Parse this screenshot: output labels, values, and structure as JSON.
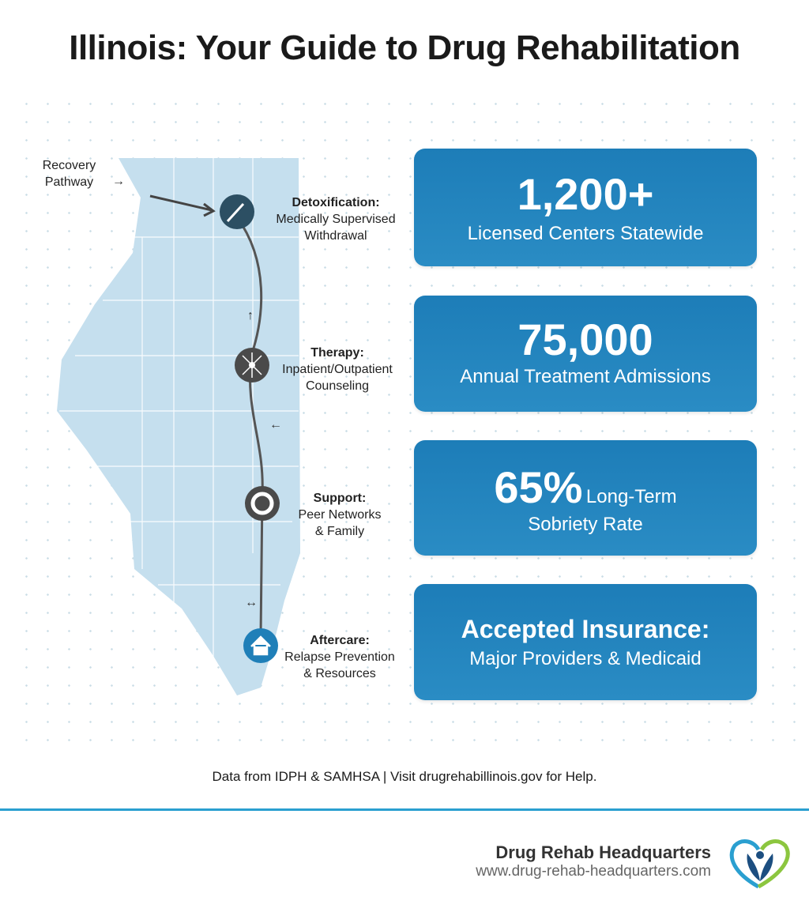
{
  "title": "Illinois: Your Guide to Drug Rehabilitation",
  "map": {
    "pathway_label": [
      "Recovery",
      "Pathway"
    ],
    "steps": [
      {
        "title": "Detoxification:",
        "lines": [
          "Medically Supervised",
          "Withdrawal"
        ],
        "icon": "syringe-stethoscope-icon"
      },
      {
        "title": "Therapy:",
        "lines": [
          "Inpatient/Outpatient",
          "Counseling"
        ],
        "icon": "neuron-icon"
      },
      {
        "title": "Support:",
        "lines": [
          "Peer Networks",
          "& Family"
        ],
        "icon": "lifebuoy-icon"
      },
      {
        "title": "Aftercare:",
        "lines": [
          "Relapse Prevention",
          "& Resources"
        ],
        "icon": "house-icon"
      }
    ]
  },
  "stats": [
    {
      "value": "1,200+",
      "label": "Licensed Centers Statewide"
    },
    {
      "value": "75,000",
      "label": "Annual Treatment Admissions"
    },
    {
      "value": "65%",
      "label_inline": "Long-Term",
      "label": "Sobriety Rate"
    },
    {
      "value": "Accepted Insurance:",
      "label": "Major Providers & Medicaid"
    }
  ],
  "footnote": "Data from IDPH & SAMHSA | Visit drugrehabillinois.gov for Help.",
  "brand": {
    "name": "Drug Rehab Headquarters",
    "url": "www.drug-rehab-headquarters.com"
  },
  "colors": {
    "card": "#1d7db8",
    "map": "#c5dfee",
    "rule": "#2a9fd0"
  }
}
